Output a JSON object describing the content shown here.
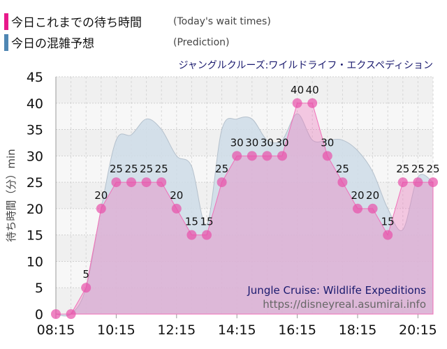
{
  "legend": {
    "actual": {
      "label": "今日これまでの待ち時間",
      "sub": "(Today's wait times)",
      "color": "#e8198b"
    },
    "prediction": {
      "label": "今日の混雑予想",
      "sub": "(Prediction)",
      "color": "#4f86b3"
    }
  },
  "chart_data": {
    "type": "area",
    "title": "ジャングルクルーズ:ワイルドライフ・エクスペディション",
    "watermark": [
      "Jungle Cruise: Wildlife Expeditions",
      "https://disneyreal.asumirai.info"
    ],
    "ylabel": "待ち時間（分）min",
    "ylim": [
      0,
      45
    ],
    "yticks": [
      0,
      5,
      10,
      15,
      20,
      25,
      30,
      35,
      40,
      45
    ],
    "xticks": [
      "08:15",
      "10:15",
      "12:15",
      "14:15",
      "16:15",
      "18:15",
      "20:15"
    ],
    "x": [
      "08:15",
      "08:45",
      "09:15",
      "09:45",
      "10:15",
      "10:45",
      "11:15",
      "11:45",
      "12:15",
      "12:45",
      "13:15",
      "13:45",
      "14:15",
      "14:45",
      "15:15",
      "15:45",
      "16:15",
      "16:45",
      "17:15",
      "17:45",
      "18:15",
      "18:45",
      "19:15",
      "19:45",
      "20:15",
      "20:45"
    ],
    "series": [
      {
        "name": "今日これまでの待ち時間",
        "color": "#e8198b",
        "values": [
          0,
          0,
          5,
          20,
          25,
          25,
          25,
          25,
          20,
          15,
          15,
          25,
          30,
          30,
          30,
          30,
          40,
          40,
          30,
          25,
          20,
          20,
          15,
          25,
          25,
          25
        ]
      },
      {
        "name": "今日の混雑予想",
        "color": "#4f86b3",
        "values": [
          0,
          0,
          5,
          20,
          33,
          34,
          37,
          35,
          30,
          28,
          17,
          35,
          37,
          37,
          33,
          33,
          38,
          33,
          33,
          33,
          31,
          27,
          20,
          16,
          26,
          25
        ]
      }
    ],
    "grid": true
  }
}
